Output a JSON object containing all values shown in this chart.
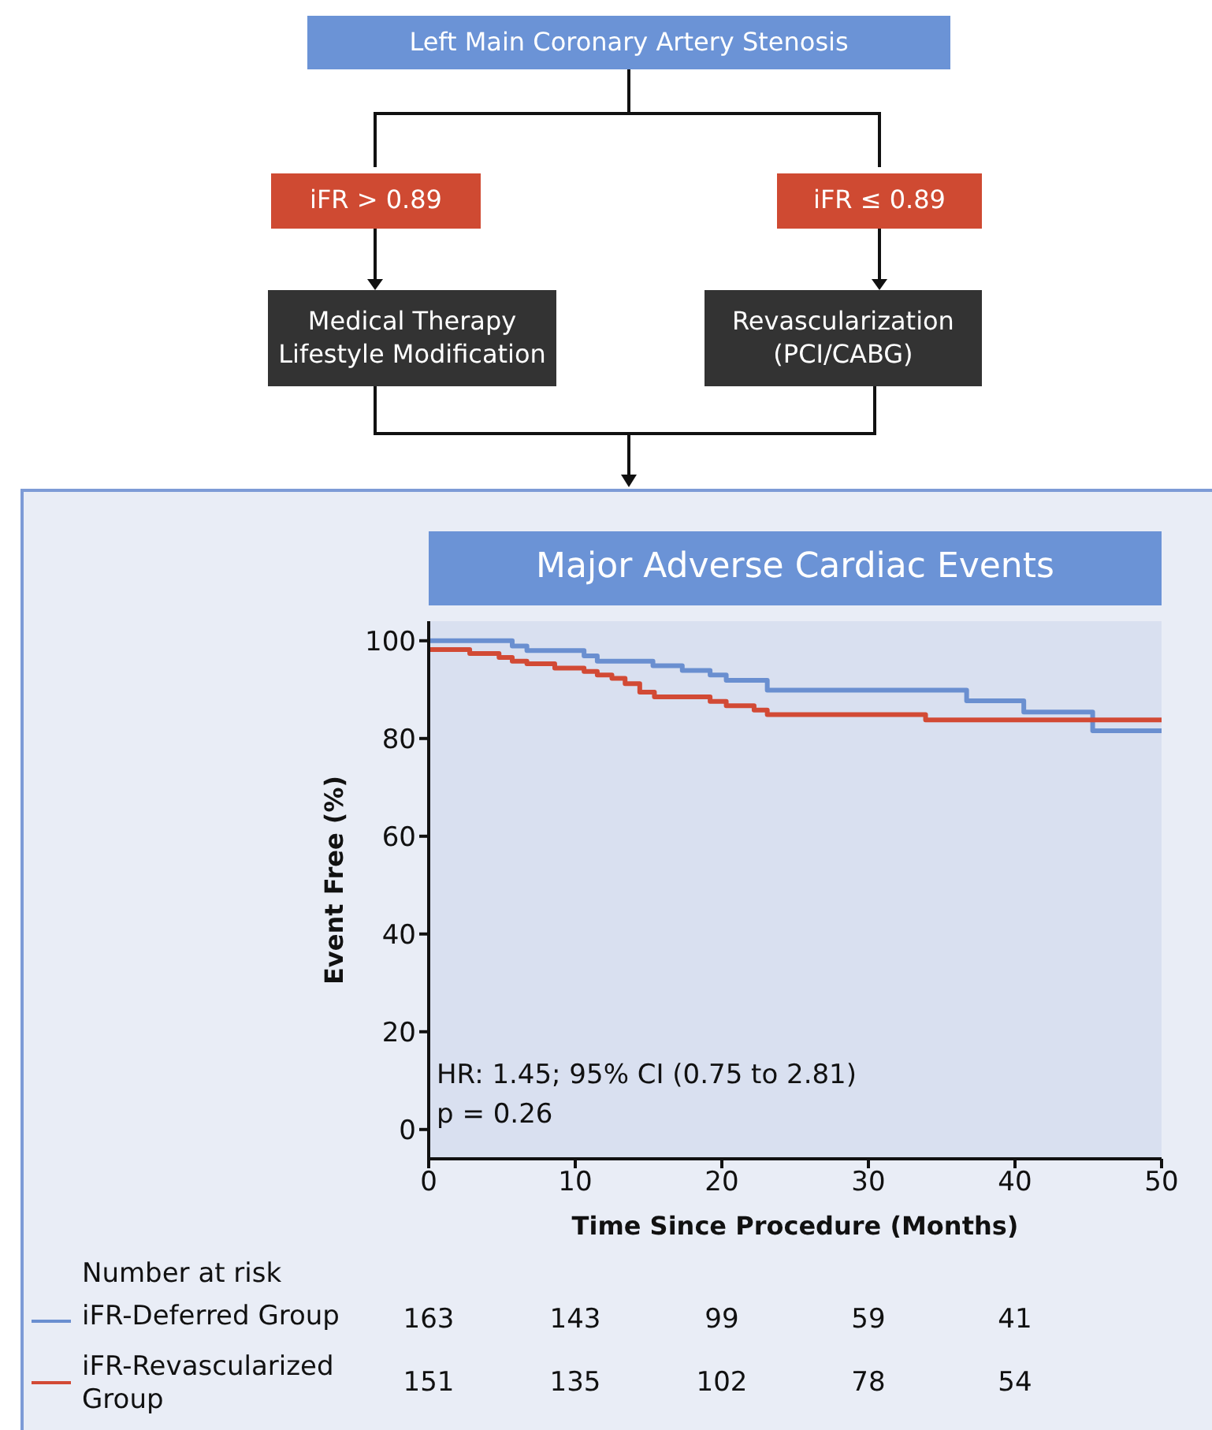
{
  "chart_data": {
    "type": "step",
    "title": "Major Adverse Cardiac Events",
    "xlabel": "Time Since Procedure (Months)",
    "ylabel": "Event Free (%)",
    "annotations": [
      "Left Main Coronary Artery Stenosis",
      "iFR > 0.89",
      "iFR ≤ 0.89",
      "Medical Therapy\nLifestyle Modification",
      "Revascularization\n(PCI/CABG)",
      "HR: 1.45; 95% CI (0.75 to 2.81)",
      "p = 0.26",
      "Number at risk",
      "163",
      "143",
      "99",
      "59",
      "41",
      "151",
      "135",
      "102",
      "78",
      "54"
    ],
    "series": [
      {
        "name": "iFR-Deferred Group",
        "color": "#6a8fd0",
        "x": [
          0,
          5.7,
          6.7,
          10.6,
          11.5,
          15.3,
          17.3,
          19.2,
          20.3,
          23.1,
          36.7,
          40.6,
          45.3,
          50
        ],
        "values": [
          100,
          98.9,
          98.0,
          96.9,
          95.8,
          94.9,
          93.9,
          93.0,
          91.9,
          89.9,
          87.7,
          85.4,
          81.6,
          81.6
        ]
      },
      {
        "name": "iFR-Revascularized Group",
        "color": "#d24a35",
        "x": [
          0,
          2.8,
          4.8,
          5.7,
          6.7,
          8.6,
          10.6,
          11.5,
          12.5,
          13.4,
          14.4,
          15.4,
          19.2,
          20.3,
          22.2,
          23.1,
          33.9,
          50
        ],
        "values": [
          98.2,
          97.4,
          96.6,
          95.8,
          95.3,
          94.4,
          93.7,
          93.0,
          92.3,
          91.2,
          89.5,
          88.5,
          87.6,
          86.7,
          85.8,
          84.9,
          83.8,
          83.8
        ]
      }
    ],
    "xlim": [
      0,
      50
    ],
    "xticks": [
      0,
      10,
      20,
      30,
      40,
      50
    ],
    "ylim": [
      -6,
      104
    ],
    "yticks": [
      0,
      20,
      40,
      60,
      80,
      100
    ],
    "grid": false,
    "legend": "bottom"
  }
}
